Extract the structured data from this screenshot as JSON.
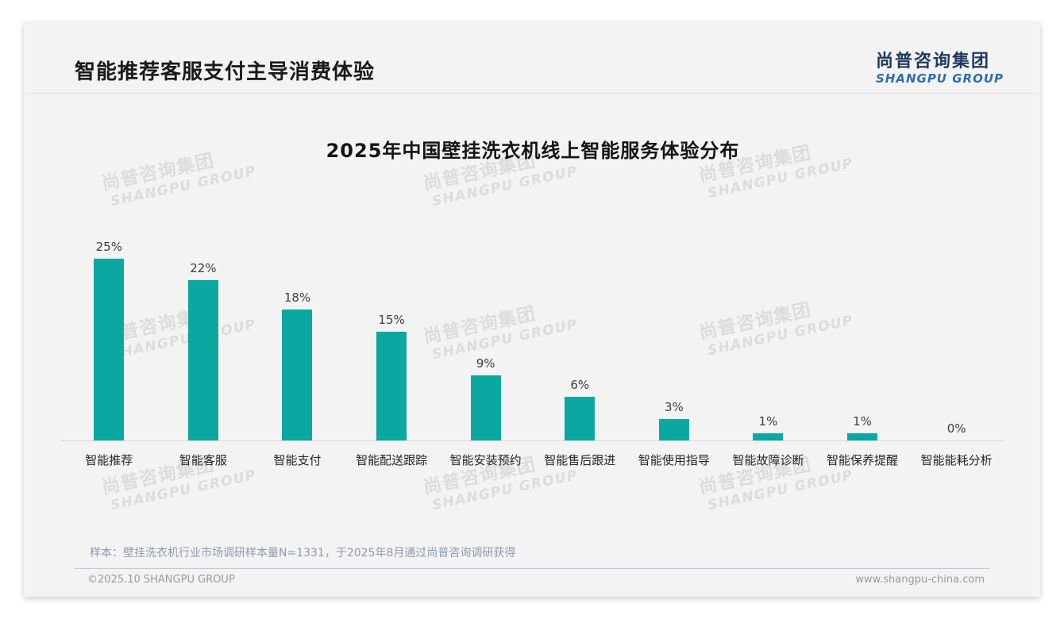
{
  "page": {
    "title": "智能推荐客服支付主导消费体验",
    "logo": {
      "cn": "尚普咨询集团",
      "en": "SHANGPU GROUP"
    },
    "watermark": {
      "line1": "尚普咨询集团",
      "line2": "SHANGPU GROUP"
    },
    "note": "样本：壁挂洗衣机行业市场调研样本量N=1331，于2025年8月通过尚普咨询调研获得",
    "footer": {
      "left": "©2025.10 SHANGPU GROUP",
      "right": "www.shangpu-china.com"
    }
  },
  "colors": {
    "bar": "#0ba8a1",
    "logo_cn": "#1e3a5f",
    "logo_en": "#2a6db5",
    "note_text": "#8c9ab0",
    "divider": "#b8c9da",
    "footer_text": "#9a9a9a",
    "axis": "#d8d8d8",
    "card_bg": "#f3f3f4",
    "watermark": "#dcdcdc"
  },
  "chart_data": {
    "type": "bar",
    "title": "2025年中国壁挂洗衣机线上智能服务体验分布",
    "categories": [
      "智能推荐",
      "智能客服",
      "智能支付",
      "智能配送跟踪",
      "智能安装预约",
      "智能售后跟进",
      "智能使用指导",
      "智能故障诊断",
      "智能保养提醒",
      "智能能耗分析"
    ],
    "values": [
      25,
      22,
      18,
      15,
      9,
      6,
      3,
      1,
      1,
      0
    ],
    "data_labels": [
      "25%",
      "22%",
      "18%",
      "15%",
      "9%",
      "6%",
      "3%",
      "1%",
      "1%",
      "0%"
    ],
    "unit": "%",
    "bar_color": "#0ba8a1",
    "ylim": [
      0,
      25
    ],
    "grid": false,
    "legend": false,
    "data_label_position": "above-bar",
    "xlabel": "",
    "ylabel": ""
  }
}
